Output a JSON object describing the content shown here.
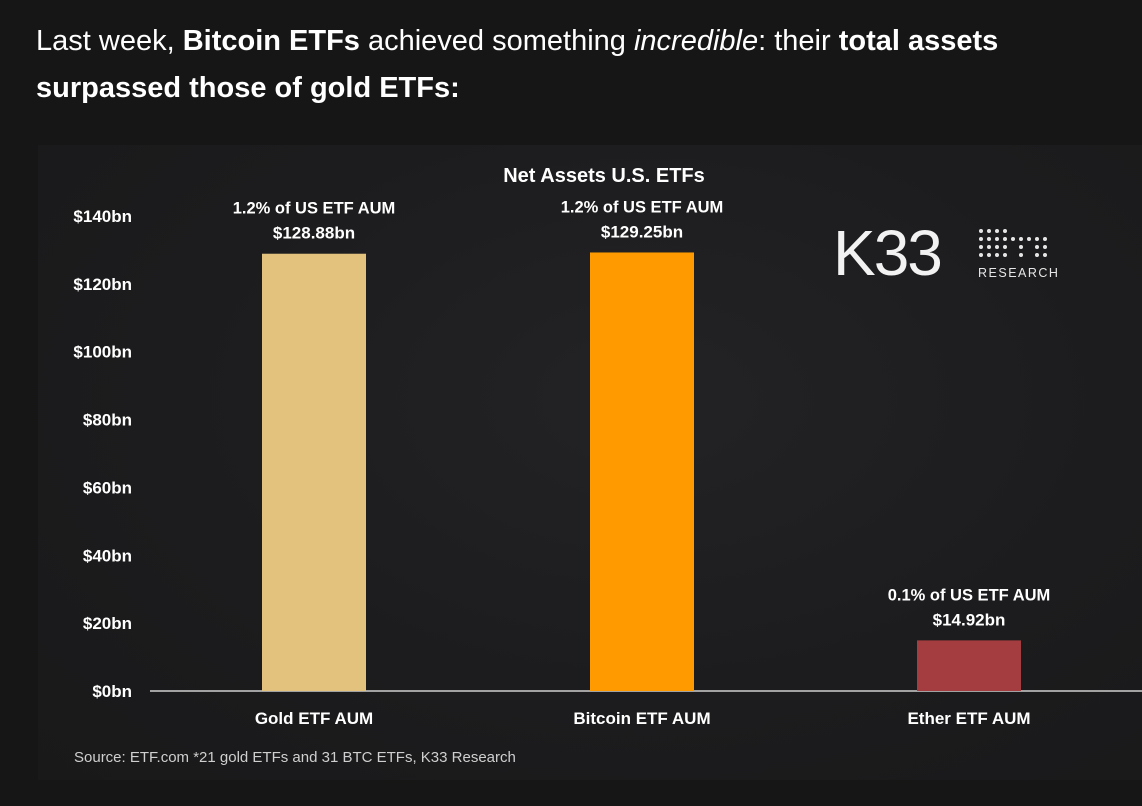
{
  "caption": {
    "part1": "Last week, ",
    "bold1": "Bitcoin ETFs",
    "part2": " achieved something ",
    "italic1": "incredible",
    "part3": ": their ",
    "bold2": "total assets surpassed those of gold ETFs:"
  },
  "logo": {
    "mark": "K33",
    "sub": "RESEARCH"
  },
  "source": "Source: ETF.com *21 gold ETFs and 31 BTC ETFs, K33 Research",
  "chart_data": {
    "type": "bar",
    "title": "Net Assets U.S. ETFs",
    "categories": [
      "Gold ETF AUM",
      "Bitcoin ETF AUM",
      "Ether ETF AUM"
    ],
    "values": [
      128.88,
      129.25,
      14.92
    ],
    "value_labels": [
      "$128.88bn",
      "$129.25bn",
      "$14.92bn"
    ],
    "share_labels": [
      "1.2% of US ETF AUM",
      "1.2% of US ETF AUM",
      "0.1% of US ETF AUM"
    ],
    "colors": [
      "#E3C27E",
      "#FF9A00",
      "#A33D3F"
    ],
    "yticks": [
      0,
      20,
      40,
      60,
      80,
      100,
      120,
      140
    ],
    "ytick_labels": [
      "$0bn",
      "$20bn",
      "$40bn",
      "$60bn",
      "$80bn",
      "$100bn",
      "$120bn",
      "$140bn"
    ],
    "ylim": [
      0,
      140
    ],
    "xlabel": "",
    "ylabel": "",
    "grid": false,
    "legend": "none"
  }
}
